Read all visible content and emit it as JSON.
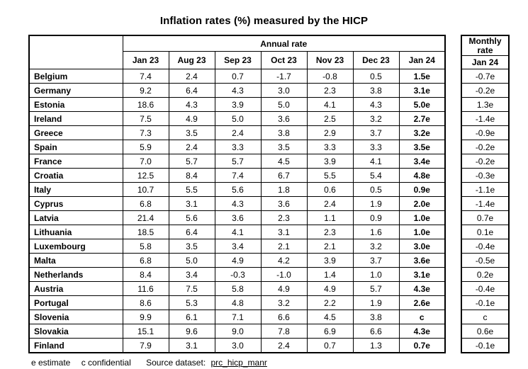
{
  "title": "Inflation rates (%) measured by the HICP",
  "chart_data": {
    "type": "table",
    "title": "Inflation rates (%) measured by the HICP",
    "header": {
      "annual_group_label": "Annual rate",
      "monthly_group_label": "Monthly rate",
      "annual_columns": [
        "Jan 23",
        "Aug 23",
        "Sep 23",
        "Oct 23",
        "Nov 23",
        "Dec 23",
        "Jan 24"
      ],
      "monthly_column": "Jan 24"
    },
    "rows": [
      {
        "country": "Belgium",
        "annual": [
          "7.4",
          "2.4",
          "0.7",
          "-1.7",
          "-0.8",
          "0.5",
          "1.5e"
        ],
        "monthly": "-0.7e"
      },
      {
        "country": "Germany",
        "annual": [
          "9.2",
          "6.4",
          "4.3",
          "3.0",
          "2.3",
          "3.8",
          "3.1e"
        ],
        "monthly": "-0.2e"
      },
      {
        "country": "Estonia",
        "annual": [
          "18.6",
          "4.3",
          "3.9",
          "5.0",
          "4.1",
          "4.3",
          "5.0e"
        ],
        "monthly": "1.3e"
      },
      {
        "country": "Ireland",
        "annual": [
          "7.5",
          "4.9",
          "5.0",
          "3.6",
          "2.5",
          "3.2",
          "2.7e"
        ],
        "monthly": "-1.4e"
      },
      {
        "country": "Greece",
        "annual": [
          "7.3",
          "3.5",
          "2.4",
          "3.8",
          "2.9",
          "3.7",
          "3.2e"
        ],
        "monthly": "-0.9e"
      },
      {
        "country": "Spain",
        "annual": [
          "5.9",
          "2.4",
          "3.3",
          "3.5",
          "3.3",
          "3.3",
          "3.5e"
        ],
        "monthly": "-0.2e"
      },
      {
        "country": "France",
        "annual": [
          "7.0",
          "5.7",
          "5.7",
          "4.5",
          "3.9",
          "4.1",
          "3.4e"
        ],
        "monthly": "-0.2e"
      },
      {
        "country": "Croatia",
        "annual": [
          "12.5",
          "8.4",
          "7.4",
          "6.7",
          "5.5",
          "5.4",
          "4.8e"
        ],
        "monthly": "-0.3e"
      },
      {
        "country": "Italy",
        "annual": [
          "10.7",
          "5.5",
          "5.6",
          "1.8",
          "0.6",
          "0.5",
          "0.9e"
        ],
        "monthly": "-1.1e"
      },
      {
        "country": "Cyprus",
        "annual": [
          "6.8",
          "3.1",
          "4.3",
          "3.6",
          "2.4",
          "1.9",
          "2.0e"
        ],
        "monthly": "-1.4e"
      },
      {
        "country": "Latvia",
        "annual": [
          "21.4",
          "5.6",
          "3.6",
          "2.3",
          "1.1",
          "0.9",
          "1.0e"
        ],
        "monthly": "0.7e"
      },
      {
        "country": "Lithuania",
        "annual": [
          "18.5",
          "6.4",
          "4.1",
          "3.1",
          "2.3",
          "1.6",
          "1.0e"
        ],
        "monthly": "0.1e"
      },
      {
        "country": "Luxembourg",
        "annual": [
          "5.8",
          "3.5",
          "3.4",
          "2.1",
          "2.1",
          "3.2",
          "3.0e"
        ],
        "monthly": "-0.4e"
      },
      {
        "country": "Malta",
        "annual": [
          "6.8",
          "5.0",
          "4.9",
          "4.2",
          "3.9",
          "3.7",
          "3.6e"
        ],
        "monthly": "-0.5e"
      },
      {
        "country": "Netherlands",
        "annual": [
          "8.4",
          "3.4",
          "-0.3",
          "-1.0",
          "1.4",
          "1.0",
          "3.1e"
        ],
        "monthly": "0.2e"
      },
      {
        "country": "Austria",
        "annual": [
          "11.6",
          "7.5",
          "5.8",
          "4.9",
          "4.9",
          "5.7",
          "4.3e"
        ],
        "monthly": "-0.4e"
      },
      {
        "country": "Portugal",
        "annual": [
          "8.6",
          "5.3",
          "4.8",
          "3.2",
          "2.2",
          "1.9",
          "2.6e"
        ],
        "monthly": "-0.1e"
      },
      {
        "country": "Slovenia",
        "annual": [
          "9.9",
          "6.1",
          "7.1",
          "6.6",
          "4.5",
          "3.8",
          "c"
        ],
        "monthly": "c"
      },
      {
        "country": "Slovakia",
        "annual": [
          "15.1",
          "9.6",
          "9.0",
          "7.8",
          "6.9",
          "6.6",
          "4.3e"
        ],
        "monthly": "0.6e"
      },
      {
        "country": "Finland",
        "annual": [
          "7.9",
          "3.1",
          "3.0",
          "2.4",
          "0.7",
          "1.3",
          "0.7e"
        ],
        "monthly": "-0.1e"
      }
    ],
    "notes": "e estimate, c confidential"
  },
  "footer": {
    "estimate_note": "e estimate",
    "confidential_note": "c confidential",
    "source_label": "Source dataset:",
    "source_link": "prc_hicp_manr"
  }
}
